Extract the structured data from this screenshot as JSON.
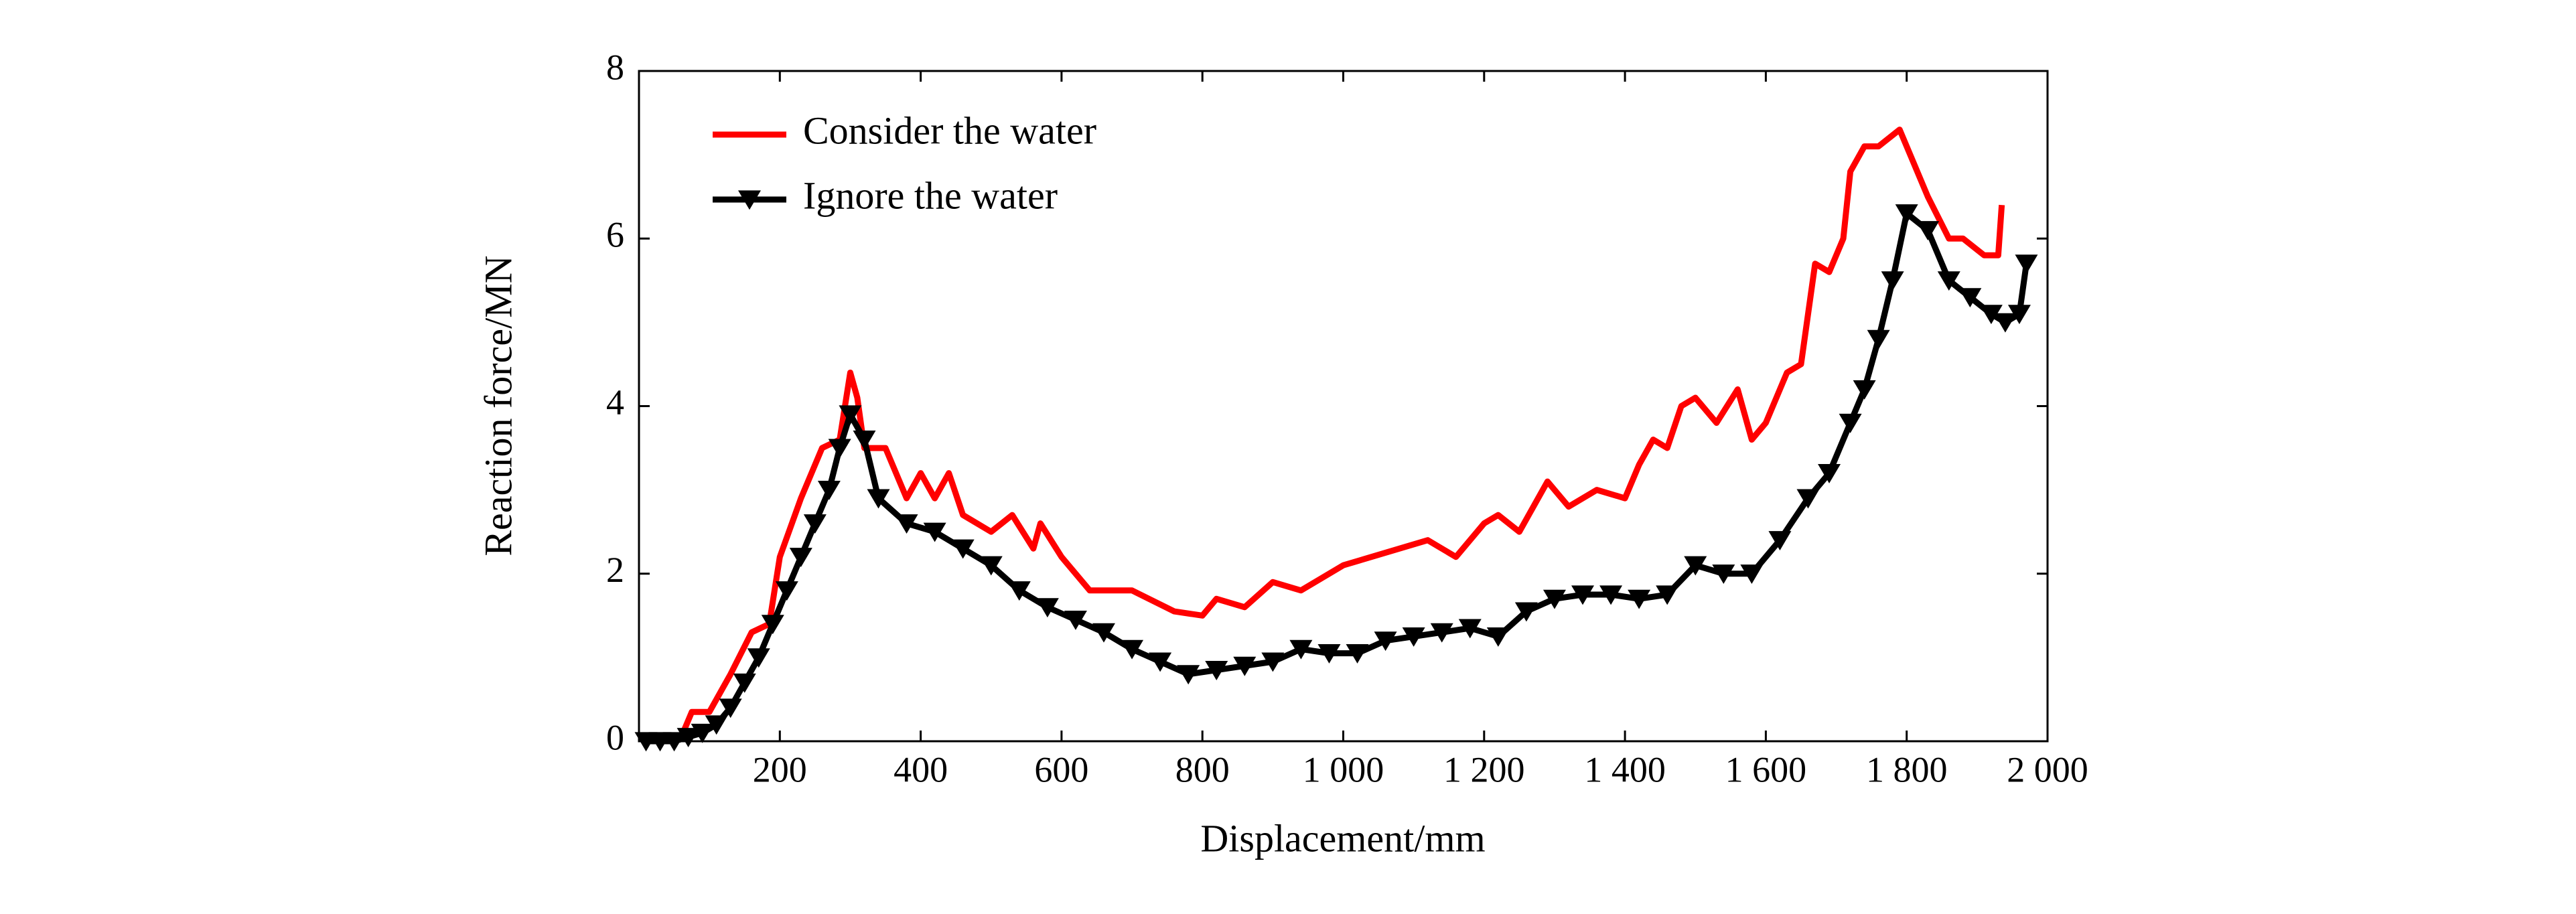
{
  "chart_data": {
    "type": "line",
    "xlabel": "Displacement/mm",
    "ylabel": "Reaction force/MN",
    "xlim": [
      0,
      2000
    ],
    "ylim": [
      0,
      8
    ],
    "xticks": [
      200,
      400,
      600,
      800,
      {
        "value": 1000,
        "label": "1 000"
      },
      {
        "value": 1200,
        "label": "1 200"
      },
      {
        "value": 1400,
        "label": "1 400"
      },
      {
        "value": 1600,
        "label": "1 600"
      },
      {
        "value": 1800,
        "label": "1 800"
      },
      {
        "value": 2000,
        "label": "2 000"
      }
    ],
    "yticks": [
      0,
      2,
      4,
      6,
      8
    ],
    "legend": "upper left",
    "series": [
      {
        "name": "Consider the water",
        "color": "#ff0000",
        "marker": "none",
        "x": [
          20,
          60,
          75,
          100,
          130,
          160,
          185,
          200,
          230,
          260,
          285,
          300,
          310,
          320,
          350,
          380,
          400,
          420,
          440,
          460,
          500,
          530,
          560,
          570,
          600,
          640,
          700,
          760,
          800,
          820,
          860,
          900,
          940,
          980,
          1000,
          1040,
          1080,
          1120,
          1160,
          1200,
          1220,
          1250,
          1290,
          1320,
          1360,
          1400,
          1420,
          1440,
          1460,
          1480,
          1500,
          1530,
          1560,
          1580,
          1600,
          1630,
          1650,
          1670,
          1690,
          1710,
          1720,
          1740,
          1760,
          1790,
          1810,
          1830,
          1860,
          1880,
          1910,
          1930,
          1935
        ],
        "values": [
          0,
          0.05,
          0.35,
          0.35,
          0.8,
          1.3,
          1.4,
          2.2,
          2.9,
          3.5,
          3.6,
          4.4,
          4.1,
          3.5,
          3.5,
          2.9,
          3.2,
          2.9,
          3.2,
          2.7,
          2.5,
          2.7,
          2.3,
          2.6,
          2.2,
          1.8,
          1.8,
          1.55,
          1.5,
          1.7,
          1.6,
          1.9,
          1.8,
          2.0,
          2.1,
          2.2,
          2.3,
          2.4,
          2.2,
          2.6,
          2.7,
          2.5,
          3.1,
          2.8,
          3.0,
          2.9,
          3.3,
          3.6,
          3.5,
          4.0,
          4.1,
          3.8,
          4.2,
          3.6,
          3.8,
          4.4,
          4.5,
          5.7,
          5.6,
          6.0,
          6.8,
          7.1,
          7.1,
          7.3,
          6.9,
          6.5,
          6.0,
          6.0,
          5.8,
          5.8,
          6.4
        ]
      },
      {
        "name": "Ignore the water",
        "color": "#000000",
        "marker": "v",
        "x": [
          10,
          30,
          50,
          70,
          90,
          110,
          130,
          150,
          170,
          190,
          210,
          230,
          250,
          270,
          285,
          300,
          320,
          340,
          380,
          420,
          460,
          500,
          540,
          580,
          620,
          660,
          700,
          740,
          780,
          820,
          860,
          900,
          940,
          980,
          1020,
          1060,
          1100,
          1140,
          1180,
          1220,
          1260,
          1300,
          1340,
          1380,
          1420,
          1460,
          1500,
          1540,
          1580,
          1620,
          1660,
          1690,
          1720,
          1740,
          1760,
          1780,
          1800,
          1830,
          1860,
          1890,
          1920,
          1940,
          1960,
          1970
        ],
        "values": [
          0,
          0,
          0,
          0.05,
          0.1,
          0.2,
          0.4,
          0.7,
          1.0,
          1.4,
          1.8,
          2.2,
          2.6,
          3.0,
          3.5,
          3.9,
          3.6,
          2.9,
          2.6,
          2.5,
          2.3,
          2.1,
          1.8,
          1.6,
          1.45,
          1.3,
          1.1,
          0.95,
          0.8,
          0.85,
          0.9,
          0.95,
          1.1,
          1.05,
          1.05,
          1.2,
          1.25,
          1.3,
          1.35,
          1.25,
          1.55,
          1.7,
          1.75,
          1.75,
          1.7,
          1.75,
          2.1,
          2.0,
          2.0,
          2.4,
          2.9,
          3.2,
          3.8,
          4.2,
          4.8,
          5.5,
          6.3,
          6.1,
          5.5,
          5.3,
          5.1,
          5.0,
          5.1,
          5.7
        ]
      }
    ]
  }
}
